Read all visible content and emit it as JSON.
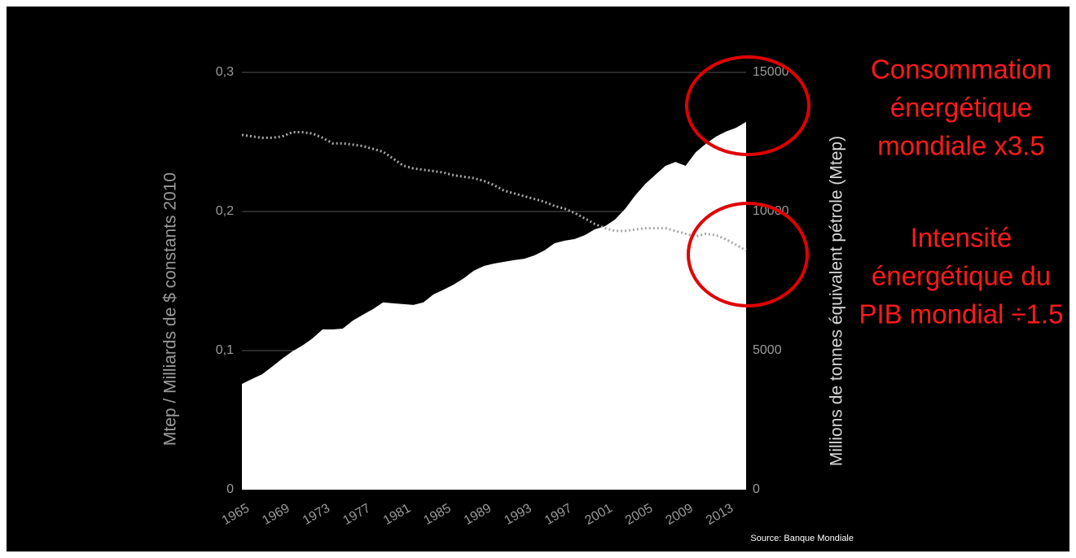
{
  "chart_data": {
    "type": "area_line",
    "x": [
      1965,
      1966,
      1967,
      1968,
      1969,
      1970,
      1971,
      1972,
      1973,
      1974,
      1975,
      1976,
      1977,
      1978,
      1979,
      1980,
      1981,
      1982,
      1983,
      1984,
      1985,
      1986,
      1987,
      1988,
      1989,
      1990,
      1991,
      1992,
      1993,
      1994,
      1995,
      1996,
      1997,
      1998,
      1999,
      2000,
      2001,
      2002,
      2003,
      2004,
      2005,
      2006,
      2007,
      2008,
      2009,
      2010,
      2011,
      2012,
      2013,
      2014,
      2015
    ],
    "series": [
      {
        "color": "#ffffff",
        "axis": "y2",
        "kind": "area",
        "values": [
          3800,
          3980,
          4150,
          4420,
          4710,
          4970,
          5180,
          5440,
          5760,
          5760,
          5790,
          6080,
          6290,
          6490,
          6730,
          6700,
          6670,
          6640,
          6730,
          7020,
          7190,
          7370,
          7600,
          7870,
          8040,
          8130,
          8190,
          8250,
          8300,
          8420,
          8600,
          8860,
          8950,
          9010,
          9150,
          9360,
          9470,
          9710,
          10090,
          10580,
          10990,
          11320,
          11640,
          11780,
          11640,
          12130,
          12430,
          12690,
          12870,
          13010,
          13220
        ]
      },
      {
        "color": "#a8a8a8",
        "axis": "y",
        "kind": "dotted-line",
        "values": [
          0.255,
          0.254,
          0.253,
          0.253,
          0.254,
          0.257,
          0.257,
          0.256,
          0.253,
          0.249,
          0.249,
          0.248,
          0.247,
          0.245,
          0.243,
          0.238,
          0.233,
          0.231,
          0.23,
          0.229,
          0.228,
          0.226,
          0.225,
          0.224,
          0.222,
          0.219,
          0.215,
          0.213,
          0.211,
          0.209,
          0.207,
          0.204,
          0.202,
          0.199,
          0.195,
          0.191,
          0.188,
          0.186,
          0.186,
          0.187,
          0.188,
          0.188,
          0.188,
          0.186,
          0.184,
          0.182,
          0.184,
          0.183,
          0.18,
          0.176,
          0.172
        ]
      }
    ],
    "xlim": [
      1965,
      2015
    ],
    "xticks": [
      1965,
      1969,
      1973,
      1977,
      1981,
      1985,
      1989,
      1993,
      1997,
      2001,
      2005,
      2009,
      2013
    ],
    "ylim": [
      0,
      0.3
    ],
    "yticks": [
      0,
      {
        "value": 0.1,
        "label": "0,1"
      },
      {
        "value": 0.2,
        "label": "0,2"
      },
      {
        "value": 0.3,
        "label": "0,3"
      }
    ],
    "y2lim": [
      0,
      15000
    ],
    "y2ticks": [
      0,
      5000,
      10000,
      15000
    ],
    "grid": true,
    "ylabel": "Mtep / Milliards de $ constants 2010",
    "y2label": "Millions de tonnes équivalent pétrole (Mtep)",
    "annotations": [
      {
        "lines": [
          "Consommation",
          "énergétique",
          "mondiale x3.5"
        ]
      },
      {
        "lines": [
          "Intensité",
          "énergétique du",
          "PIB mondial ÷1.5"
        ]
      }
    ],
    "source": "Source: Banque Mondiale"
  }
}
